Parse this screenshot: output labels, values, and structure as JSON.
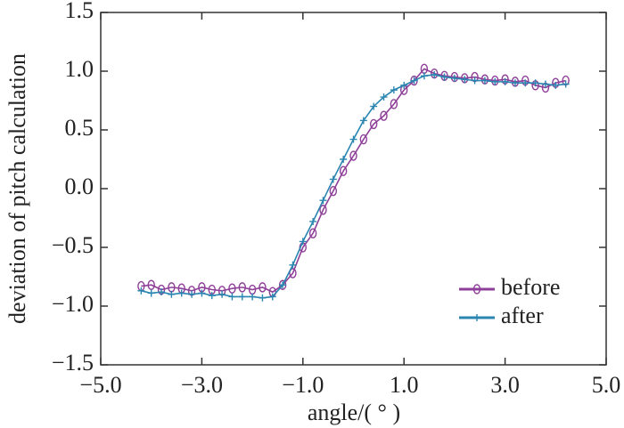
{
  "chart_data": {
    "type": "line",
    "xlabel": "angle/( ° )",
    "ylabel": "deviation of pitch calculation",
    "x": [
      -4.2,
      -4.0,
      -3.8,
      -3.6,
      -3.4,
      -3.2,
      -3.0,
      -2.8,
      -2.6,
      -2.4,
      -2.2,
      -2.0,
      -1.8,
      -1.6,
      -1.4,
      -1.2,
      -1.0,
      -0.8,
      -0.6,
      -0.4,
      -0.2,
      0.0,
      0.2,
      0.4,
      0.6,
      0.8,
      1.0,
      1.2,
      1.4,
      1.6,
      1.8,
      2.0,
      2.2,
      2.4,
      2.6,
      2.8,
      3.0,
      3.2,
      3.4,
      3.6,
      3.8,
      4.0,
      4.2
    ],
    "series": [
      {
        "name": "before",
        "color": "#8e3f98",
        "marker": "circle",
        "values": [
          -0.83,
          -0.82,
          -0.86,
          -0.84,
          -0.85,
          -0.87,
          -0.84,
          -0.86,
          -0.87,
          -0.85,
          -0.84,
          -0.86,
          -0.84,
          -0.88,
          -0.82,
          -0.72,
          -0.5,
          -0.38,
          -0.18,
          -0.02,
          0.15,
          0.28,
          0.42,
          0.55,
          0.62,
          0.72,
          0.84,
          0.92,
          1.02,
          0.98,
          0.96,
          0.95,
          0.94,
          0.95,
          0.93,
          0.92,
          0.93,
          0.91,
          0.92,
          0.88,
          0.86,
          0.9,
          0.92
        ]
      },
      {
        "name": "after",
        "color": "#2a86b0",
        "marker": "plus",
        "values": [
          -0.87,
          -0.89,
          -0.88,
          -0.9,
          -0.89,
          -0.9,
          -0.89,
          -0.91,
          -0.9,
          -0.92,
          -0.92,
          -0.92,
          -0.93,
          -0.92,
          -0.82,
          -0.65,
          -0.45,
          -0.28,
          -0.1,
          0.08,
          0.25,
          0.42,
          0.58,
          0.7,
          0.78,
          0.84,
          0.88,
          0.92,
          0.96,
          0.97,
          0.95,
          0.94,
          0.93,
          0.92,
          0.92,
          0.91,
          0.91,
          0.9,
          0.9,
          0.9,
          0.89,
          0.88,
          0.89
        ]
      }
    ],
    "xlim": [
      -5,
      5
    ],
    "xticks": [
      {
        "value": -5,
        "label": "−5.0"
      },
      {
        "value": -3,
        "label": "−3.0"
      },
      {
        "value": -1,
        "label": "−1.0"
      },
      {
        "value": 1,
        "label": "1.0"
      },
      {
        "value": 3,
        "label": "3.0"
      },
      {
        "value": 5,
        "label": "5.0"
      }
    ],
    "ylim": [
      -1.5,
      1.5
    ],
    "yticks": [
      {
        "value": -1.5,
        "label": "−1.5"
      },
      {
        "value": -1,
        "label": "−1.0"
      },
      {
        "value": -0.5,
        "label": "−0.5"
      },
      {
        "value": 0,
        "label": "0.0"
      },
      0.5,
      {
        "value": 1,
        "label": "1.0"
      },
      1.5
    ],
    "legend": "lower right"
  }
}
